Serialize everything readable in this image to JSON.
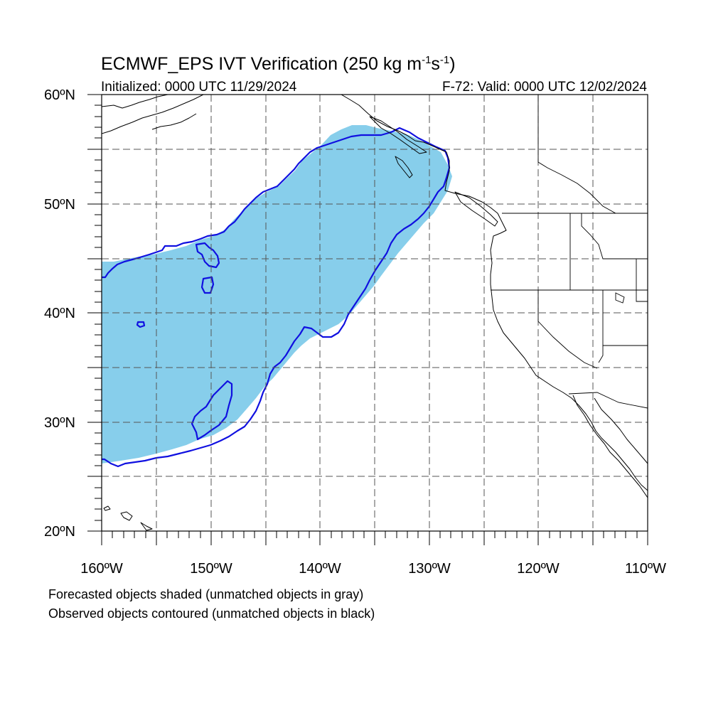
{
  "title": {
    "text": "ECMWF_EPS IVT Verification (250 kg m",
    "sup1": "-1",
    "mid": "s",
    "sup2": "-1",
    "end": ")"
  },
  "subtitle_left": "Initialized: 0000 UTC 11/29/2024",
  "subtitle_right": "F-72: Valid: 0000 UTC 12/02/2024",
  "lat_labels": [
    "60ºN",
    "50ºN",
    "40ºN",
    "30ºN",
    "20ºN"
  ],
  "lon_labels": [
    "160ºW",
    "150ºW",
    "140ºW",
    "130ºW",
    "120ºW",
    "110ºW"
  ],
  "notes": [
    "Forecasted objects shaded (unmatched objects in gray)",
    "Observed objects contoured (unmatched objects in black)"
  ],
  "colors": {
    "forecast_fill": "#87ceeb",
    "observed_contour": "#1010e0",
    "coast": "#000000",
    "grid": "#555555"
  },
  "map_extent": {
    "lon": [
      -160,
      -110
    ],
    "lat": [
      20,
      60
    ],
    "projection": "cylindrical-equidistant",
    "grid_spacing_deg": 5
  }
}
